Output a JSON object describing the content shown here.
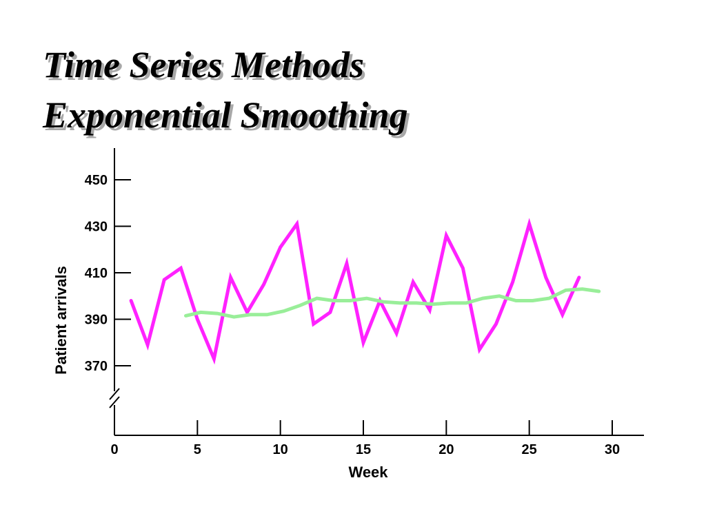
{
  "title": {
    "line1": "Time Series Methods",
    "line2": "Exponential Smoothing"
  },
  "chart_data": {
    "type": "line",
    "xlabel": "Week",
    "ylabel": "Patient arrivals",
    "xlim": [
      0,
      32
    ],
    "ylim": [
      355,
      460
    ],
    "x_ticks": [
      0,
      5,
      10,
      15,
      20,
      25,
      30
    ],
    "y_ticks": [
      370,
      390,
      410,
      430,
      450
    ],
    "axis_break": "y",
    "grid": false,
    "series": [
      {
        "color": "#ff22ff",
        "x": [
          1,
          2,
          3,
          4,
          5,
          6,
          7,
          8,
          9,
          10,
          11,
          12,
          13,
          14,
          15,
          16,
          17,
          18,
          19,
          20,
          21,
          22,
          23,
          24,
          25,
          26,
          27,
          28
        ],
        "y": [
          398,
          379,
          407,
          412,
          390,
          373,
          408,
          393,
          405,
          421,
          431,
          388,
          393,
          414,
          380,
          398,
          384,
          406,
          394,
          426,
          412,
          377,
          388,
          406,
          431,
          408,
          392,
          408
        ]
      },
      {
        "color": "#99ee99",
        "x": [
          4.3,
          5.2,
          6.2,
          7.2,
          8.2,
          9.2,
          10.2,
          11.2,
          12.2,
          13.2,
          14.2,
          15.2,
          16.2,
          17.2,
          18.2,
          19.2,
          20.2,
          21.2,
          22.2,
          23.2,
          24.2,
          25.2,
          26.2,
          27.2,
          28.2,
          29.2
        ],
        "y": [
          391.5,
          393,
          392.5,
          391,
          392,
          392,
          393.5,
          396,
          399,
          398,
          398,
          399,
          397.5,
          397,
          397,
          396.5,
          397,
          397,
          399,
          400,
          398,
          398,
          399,
          402.5,
          403,
          402
        ]
      }
    ]
  }
}
